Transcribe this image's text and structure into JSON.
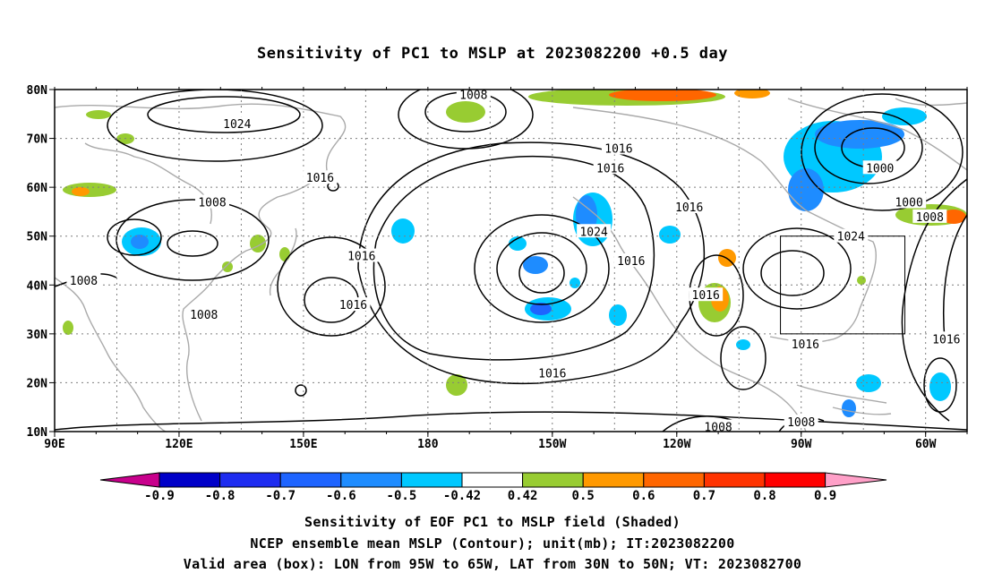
{
  "title": "Sensitivity of PC1 to MSLP at 2023082200 +0.5 day",
  "map": {
    "lat_ticks": [
      "80N",
      "70N",
      "60N",
      "50N",
      "40N",
      "30N",
      "20N",
      "10N"
    ],
    "lon_ticks": [
      "90E",
      "120E",
      "150E",
      "180",
      "150W",
      "120W",
      "90W",
      "60W"
    ],
    "valid_box": {
      "lon_min": -95,
      "lon_max": -65,
      "lat_min": 30,
      "lat_max": 50
    },
    "contour_labels": [
      {
        "text": "1008",
        "lon": -169,
        "lat": 79
      },
      {
        "text": "1024",
        "lon": 134,
        "lat": 73
      },
      {
        "text": "1016",
        "lon": -134,
        "lat": 68
      },
      {
        "text": "1016",
        "lon": -136,
        "lat": 64
      },
      {
        "text": "1016",
        "lon": 154,
        "lat": 62
      },
      {
        "text": "1000",
        "lon": -71,
        "lat": 64
      },
      {
        "text": "1008",
        "lon": 128,
        "lat": 57
      },
      {
        "text": "1000",
        "lon": -64,
        "lat": 57
      },
      {
        "text": "1008",
        "lon": -59,
        "lat": 54
      },
      {
        "text": "1016",
        "lon": -117,
        "lat": 56
      },
      {
        "text": "1024",
        "lon": -140,
        "lat": 51
      },
      {
        "text": "1024",
        "lon": -78,
        "lat": 50
      },
      {
        "text": "1016",
        "lon": 164,
        "lat": 46
      },
      {
        "text": "1016",
        "lon": -131,
        "lat": 45
      },
      {
        "text": "1008",
        "lon": 97,
        "lat": 41
      },
      {
        "text": "1016",
        "lon": -113,
        "lat": 38
      },
      {
        "text": "1016",
        "lon": 162,
        "lat": 36
      },
      {
        "text": "1008",
        "lon": 126,
        "lat": 34
      },
      {
        "text": "1016",
        "lon": -89,
        "lat": 28
      },
      {
        "text": "1016",
        "lon": -150,
        "lat": 22
      },
      {
        "text": "1016",
        "lon": -55,
        "lat": 29
      },
      {
        "text": "1008",
        "lon": -110,
        "lat": 11
      },
      {
        "text": "1008",
        "lon": -90,
        "lat": 12
      }
    ]
  },
  "colorbar": {
    "labels": [
      "-0.9",
      "-0.8",
      "-0.7",
      "-0.6",
      "-0.5",
      "-0.42",
      "0.42",
      "0.5",
      "0.6",
      "0.7",
      "0.8",
      "0.9"
    ],
    "colors": [
      "#0000c8",
      "#1e2cf0",
      "#1e64ff",
      "#1e8cff",
      "#00c8ff",
      "#ffffff",
      "#98cc32",
      "#ff9900",
      "#ff6600",
      "#ff3300",
      "#ff0000"
    ],
    "under_color": "#c8008c",
    "over_color": "#ffa0c8"
  },
  "captions": {
    "line1": "Sensitivity of EOF PC1 to MSLP field (Shaded)",
    "line2": "NCEP ensemble mean MSLP (Contour); unit(mb); IT:2023082200",
    "line3": "Valid area (box): LON from 95W to 65W, LAT from 30N to 50N; VT: 2023082700"
  }
}
